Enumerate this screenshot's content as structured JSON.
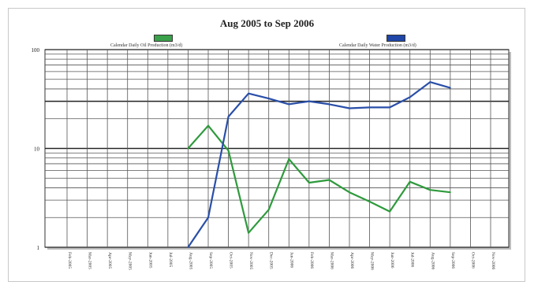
{
  "chart_data": {
    "type": "line",
    "title": "Aug 2005 to Sep 2006",
    "yscale": "log",
    "ylim": [
      1,
      100
    ],
    "yticks": [
      "100",
      "10",
      "1"
    ],
    "grid": true,
    "legend_placement": "top",
    "categories": [
      "Feb-2005",
      "Mar-2005",
      "Apr-2005",
      "May-2005",
      "Jun-2005",
      "Jul-2005",
      "Aug-2005",
      "Sep-2005",
      "Oct-2005",
      "Nov-2005",
      "Dec-2005",
      "Jan-2006",
      "Feb-2006",
      "Mar-2006",
      "Apr-2006",
      "May-2006",
      "Jun-2006",
      "Jul-2006",
      "Aug-2006",
      "Sep-2006",
      "Oct-2006",
      "Nov-2006"
    ],
    "series": [
      {
        "name": "Calendar Daily Oil Production (m3/d)",
        "color": "#2e9a3c",
        "values": [
          null,
          null,
          null,
          null,
          null,
          null,
          10,
          17,
          9.5,
          1.4,
          2.4,
          7.8,
          4.5,
          4.8,
          3.6,
          2.9,
          2.3,
          4.6,
          3.8,
          3.6,
          null,
          null
        ]
      },
      {
        "name": "Calendar Daily Water Production (m3/d)",
        "color": "#2a4fa8",
        "values": [
          null,
          null,
          null,
          null,
          null,
          null,
          1.0,
          2.0,
          21,
          36,
          32,
          28,
          30,
          28,
          25.5,
          26,
          26,
          33,
          47,
          41,
          null,
          null
        ]
      }
    ]
  },
  "colors": {
    "oil_swatch": "#3aa14a",
    "water_swatch": "#1f46a8",
    "grid": "#555555",
    "grid_major": "#222222"
  }
}
